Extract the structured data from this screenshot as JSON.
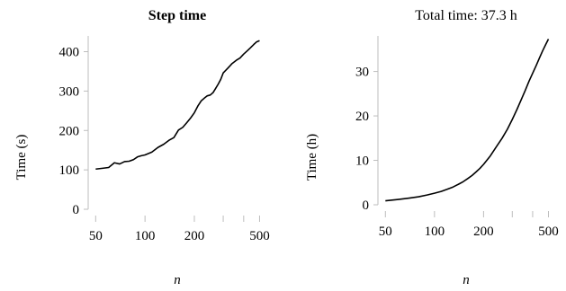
{
  "chart_data": [
    {
      "type": "line",
      "title": "Step time",
      "xlabel": "n",
      "ylabel": "Time (s)",
      "xscale": "log",
      "xlim": [
        45,
        550
      ],
      "ylim": [
        0,
        440
      ],
      "xticks": [
        50,
        100,
        200,
        500
      ],
      "yticks": [
        0,
        100,
        200,
        300,
        400
      ],
      "grid": false,
      "series": [
        {
          "color": "#000000",
          "x": [
            50,
            55,
            60,
            65,
            70,
            75,
            80,
            85,
            90,
            95,
            100,
            110,
            120,
            130,
            140,
            150,
            160,
            170,
            180,
            190,
            200,
            210,
            220,
            230,
            240,
            250,
            260,
            270,
            280,
            290,
            300,
            320,
            340,
            360,
            380,
            400,
            420,
            440,
            460,
            480,
            500
          ],
          "values": [
            102,
            104,
            106,
            118,
            115,
            121,
            122,
            126,
            133,
            136,
            138,
            145,
            157,
            165,
            175,
            182,
            201,
            208,
            220,
            232,
            245,
            262,
            275,
            282,
            288,
            290,
            296,
            307,
            318,
            330,
            346,
            358,
            370,
            378,
            384,
            394,
            402,
            410,
            418,
            425,
            428
          ]
        }
      ]
    },
    {
      "type": "line",
      "title": "Total time: 37.3 h",
      "xlabel": "n",
      "ylabel": "Time (h)",
      "xscale": "log",
      "xlim": [
        45,
        550
      ],
      "ylim": [
        0,
        38
      ],
      "xticks": [
        50,
        100,
        200,
        500
      ],
      "yticks": [
        0,
        10,
        20,
        30
      ],
      "grid": false,
      "series": [
        {
          "color": "#000000",
          "x": [
            50,
            60,
            70,
            80,
            90,
            100,
            110,
            120,
            130,
            140,
            150,
            160,
            170,
            180,
            190,
            200,
            220,
            240,
            260,
            280,
            300,
            320,
            340,
            360,
            380,
            400,
            420,
            440,
            460,
            480,
            500
          ],
          "values": [
            0.9,
            1.2,
            1.5,
            1.8,
            2.2,
            2.6,
            3.0,
            3.5,
            4.0,
            4.6,
            5.2,
            5.9,
            6.6,
            7.4,
            8.2,
            9.1,
            11.0,
            13.1,
            15.0,
            17.0,
            19.2,
            21.4,
            23.6,
            25.7,
            27.8,
            29.6,
            31.3,
            33.0,
            34.6,
            36.0,
            37.3
          ]
        }
      ]
    }
  ]
}
